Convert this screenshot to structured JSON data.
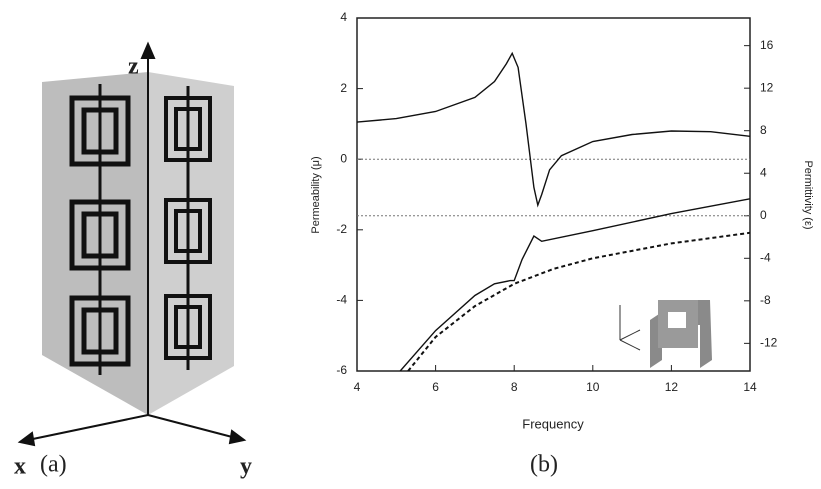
{
  "chart_data": {
    "type": "line",
    "xlabel": "Frequency",
    "ylabel": "Permeability (μ)",
    "y2label": "Permittivity (ε)",
    "xlim": [
      4,
      14
    ],
    "xticks": [
      4,
      6,
      8,
      10,
      12,
      14
    ],
    "ylim": [
      -6,
      4
    ],
    "yticks": [
      -6,
      -4,
      -2,
      0,
      2,
      4
    ],
    "y2lim": [
      -14.6,
      18.6
    ],
    "y2ticks": [
      -12,
      -8,
      -4,
      0,
      4,
      8,
      12,
      16
    ],
    "zero_lines": true,
    "series": [
      {
        "color": "#111111",
        "style": "solid",
        "x": [
          4,
          5,
          6,
          7,
          7.5,
          7.8,
          7.95,
          8.1,
          8.3,
          8.5,
          8.6,
          8.7,
          8.9,
          9.2,
          10,
          11,
          12,
          13,
          14
        ],
        "values": [
          1.05,
          1.15,
          1.35,
          1.75,
          2.2,
          2.7,
          3.0,
          2.6,
          1.0,
          -0.8,
          -1.3,
          -1.0,
          -0.3,
          0.1,
          0.5,
          0.7,
          0.8,
          0.78,
          0.65
        ]
      },
      {
        "color": "#111111",
        "style": "solid",
        "axis": "y2",
        "x": [
          5.1,
          6,
          7,
          7.5,
          7.9,
          8,
          8.2,
          8.5,
          8.7,
          10,
          12,
          14
        ],
        "values": [
          -14.6,
          -10.8,
          -7.5,
          -6.4,
          -6.1,
          -6.1,
          -4.1,
          -1.9,
          -2.4,
          -1.4,
          0.2,
          1.6
        ]
      },
      {
        "color": "#111111",
        "style": "dashed",
        "axis": "y2",
        "x": [
          5.3,
          6,
          7,
          8,
          9,
          10,
          12,
          14
        ],
        "values": [
          -14.6,
          -11.4,
          -8.5,
          -6.4,
          -5,
          -4,
          -2.6,
          -1.6
        ]
      }
    ]
  },
  "diagram": {
    "z": "z",
    "x": "x",
    "y": "y"
  },
  "panels": [
    "(a)",
    "(b)"
  ]
}
